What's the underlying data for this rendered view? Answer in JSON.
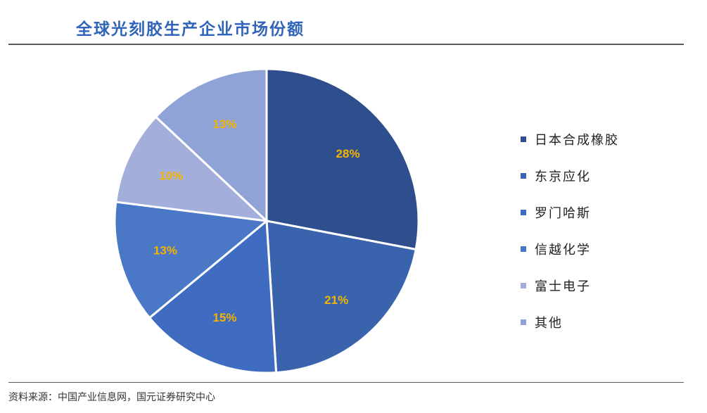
{
  "header": {
    "title": "全球光刻胶生产企业市场份额"
  },
  "footer": {
    "source": "资料来源：中国产业信息网，国元证券研究中心"
  },
  "chart_data": {
    "type": "pie",
    "title": "全球光刻胶生产企业市场份额",
    "categories": [
      "日本合成橡胶",
      "东京应化",
      "罗门哈斯",
      "信越化学",
      "富士电子",
      "其他"
    ],
    "values": [
      28,
      21,
      15,
      13,
      10,
      13
    ],
    "labels": [
      "28%",
      "21%",
      "15%",
      "13%",
      "10%",
      "13%"
    ],
    "colors": [
      "#2f4e8e",
      "#3a63ad",
      "#3f6cc0",
      "#4a78c6",
      "#a4aedb",
      "#8fa3d6"
    ],
    "label_color": "#f4b400",
    "legend_position": "right",
    "start_angle": "12 o'clock",
    "direction": "clockwise"
  }
}
